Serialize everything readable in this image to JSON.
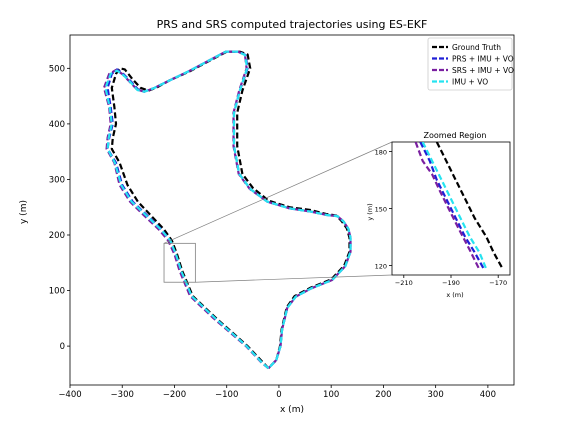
{
  "chart_data": [
    {
      "type": "line",
      "title": "PRS and SRS computed trajectories using ES-EKF",
      "xlabel": "x (m)",
      "ylabel": "y (m)",
      "xlim": [
        -400,
        450
      ],
      "ylim": [
        -70,
        560
      ],
      "xticks": [
        -400,
        -300,
        -200,
        -100,
        0,
        100,
        200,
        300,
        400
      ],
      "yticks": [
        0,
        100,
        200,
        300,
        400,
        500
      ],
      "grid": false,
      "legend_position": "top-right",
      "series": [
        {
          "name": "Ground Truth",
          "color": "#000000",
          "points": [
            [
              -20,
              -40
            ],
            [
              -30,
              -30
            ],
            [
              -60,
              0
            ],
            [
              -120,
              50
            ],
            [
              -165,
              90
            ],
            [
              -185,
              135
            ],
            [
              -195,
              165
            ],
            [
              -205,
              190
            ],
            [
              -220,
              210
            ],
            [
              -245,
              235
            ],
            [
              -270,
              260
            ],
            [
              -290,
              290
            ],
            [
              -305,
              330
            ],
            [
              -320,
              355
            ],
            [
              -318,
              375
            ],
            [
              -312,
              400
            ],
            [
              -315,
              430
            ],
            [
              -320,
              465
            ],
            [
              -312,
              490
            ],
            [
              -305,
              500
            ],
            [
              -295,
              498
            ],
            [
              -280,
              480
            ],
            [
              -265,
              465
            ],
            [
              -250,
              460
            ],
            [
              -235,
              465
            ],
            [
              -210,
              478
            ],
            [
              -170,
              495
            ],
            [
              -130,
              515
            ],
            [
              -100,
              530
            ],
            [
              -75,
              530
            ],
            [
              -60,
              525
            ],
            [
              -55,
              500
            ],
            [
              -70,
              460
            ],
            [
              -80,
              420
            ],
            [
              -80,
              360
            ],
            [
              -70,
              310
            ],
            [
              -50,
              285
            ],
            [
              -20,
              262
            ],
            [
              20,
              250
            ],
            [
              60,
              245
            ],
            [
              90,
              238
            ],
            [
              110,
              235
            ],
            [
              120,
              225
            ],
            [
              130,
              212
            ],
            [
              135,
              195
            ],
            [
              135,
              170
            ],
            [
              125,
              145
            ],
            [
              100,
              120
            ],
            [
              60,
              105
            ],
            [
              30,
              90
            ],
            [
              15,
              70
            ],
            [
              5,
              30
            ],
            [
              2,
              0
            ],
            [
              -5,
              -25
            ],
            [
              -20,
              -40
            ]
          ]
        },
        {
          "name": "PRS + IMU + VO",
          "color": "#1f1fd6",
          "points": [
            [
              -20,
              -40
            ],
            [
              -32,
              -30
            ],
            [
              -62,
              0
            ],
            [
              -122,
              50
            ],
            [
              -168,
              90
            ],
            [
              -188,
              135
            ],
            [
              -198,
              165
            ],
            [
              -208,
              190
            ],
            [
              -225,
              210
            ],
            [
              -252,
              235
            ],
            [
              -280,
              260
            ],
            [
              -300,
              290
            ],
            [
              -312,
              330
            ],
            [
              -328,
              355
            ],
            [
              -325,
              375
            ],
            [
              -318,
              400
            ],
            [
              -322,
              430
            ],
            [
              -328,
              465
            ],
            [
              -320,
              490
            ],
            [
              -310,
              498
            ],
            [
              -298,
              490
            ],
            [
              -282,
              475
            ],
            [
              -270,
              462
            ],
            [
              -258,
              458
            ],
            [
              -240,
              464
            ],
            [
              -212,
              477
            ],
            [
              -172,
              495
            ],
            [
              -132,
              515
            ],
            [
              -102,
              530
            ],
            [
              -77,
              530
            ],
            [
              -64,
              524
            ],
            [
              -60,
              500
            ],
            [
              -75,
              460
            ],
            [
              -86,
              420
            ],
            [
              -86,
              360
            ],
            [
              -76,
              310
            ],
            [
              -55,
              283
            ],
            [
              -22,
              260
            ],
            [
              20,
              248
            ],
            [
              62,
              242
            ],
            [
              92,
              236
            ],
            [
              112,
              234
            ],
            [
              124,
              224
            ],
            [
              133,
              211
            ],
            [
              137,
              195
            ],
            [
              137,
              170
            ],
            [
              127,
              144
            ],
            [
              102,
              119
            ],
            [
              62,
              104
            ],
            [
              32,
              89
            ],
            [
              16,
              69
            ],
            [
              6,
              30
            ],
            [
              3,
              0
            ],
            [
              -5,
              -25
            ],
            [
              -20,
              -40
            ]
          ]
        },
        {
          "name": "SRS + IMU + VO",
          "color": "#7a1fa0",
          "points": [
            [
              -20,
              -40
            ],
            [
              -33,
              -30
            ],
            [
              -63,
              0
            ],
            [
              -125,
              50
            ],
            [
              -170,
              90
            ],
            [
              -190,
              135
            ],
            [
              -200,
              165
            ],
            [
              -212,
              190
            ],
            [
              -230,
              210
            ],
            [
              -258,
              235
            ],
            [
              -285,
              260
            ],
            [
              -305,
              290
            ],
            [
              -315,
              330
            ],
            [
              -330,
              355
            ],
            [
              -328,
              375
            ],
            [
              -322,
              400
            ],
            [
              -325,
              430
            ],
            [
              -335,
              465
            ],
            [
              -325,
              490
            ],
            [
              -312,
              497
            ],
            [
              -300,
              490
            ],
            [
              -285,
              475
            ],
            [
              -272,
              462
            ],
            [
              -258,
              458
            ],
            [
              -240,
              464
            ],
            [
              -212,
              477
            ],
            [
              -172,
              495
            ],
            [
              -132,
              515
            ],
            [
              -102,
              530
            ],
            [
              -78,
              530
            ],
            [
              -65,
              524
            ],
            [
              -62,
              500
            ],
            [
              -76,
              460
            ],
            [
              -87,
              420
            ],
            [
              -87,
              360
            ],
            [
              -77,
              310
            ],
            [
              -56,
              283
            ],
            [
              -22,
              260
            ],
            [
              20,
              248
            ],
            [
              62,
              242
            ],
            [
              92,
              236
            ],
            [
              112,
              234
            ],
            [
              124,
              224
            ],
            [
              133,
              211
            ],
            [
              137,
              195
            ],
            [
              137,
              170
            ],
            [
              127,
              144
            ],
            [
              102,
              119
            ],
            [
              62,
              104
            ],
            [
              32,
              89
            ],
            [
              16,
              69
            ],
            [
              6,
              30
            ],
            [
              3,
              0
            ],
            [
              -5,
              -25
            ],
            [
              -20,
              -40
            ]
          ]
        },
        {
          "name": "IMU + VO",
          "color": "#26e3f0",
          "points": [
            [
              -20,
              -40
            ],
            [
              -32,
              -30
            ],
            [
              -62,
              0
            ],
            [
              -122,
              50
            ],
            [
              -167,
              90
            ],
            [
              -187,
              135
            ],
            [
              -197,
              165
            ],
            [
              -208,
              190
            ],
            [
              -226,
              210
            ],
            [
              -254,
              235
            ],
            [
              -282,
              260
            ],
            [
              -302,
              290
            ],
            [
              -314,
              330
            ],
            [
              -328,
              355
            ],
            [
              -326,
              375
            ],
            [
              -320,
              400
            ],
            [
              -324,
              430
            ],
            [
              -332,
              465
            ],
            [
              -322,
              490
            ],
            [
              -310,
              496
            ],
            [
              -298,
              488
            ],
            [
              -283,
              474
            ],
            [
              -271,
              461
            ],
            [
              -258,
              458
            ],
            [
              -240,
              464
            ],
            [
              -212,
              477
            ],
            [
              -172,
              495
            ],
            [
              -132,
              515
            ],
            [
              -102,
              530
            ],
            [
              -78,
              530
            ],
            [
              -65,
              524
            ],
            [
              -61,
              500
            ],
            [
              -75,
              460
            ],
            [
              -86,
              420
            ],
            [
              -86,
              360
            ],
            [
              -76,
              310
            ],
            [
              -55,
              283
            ],
            [
              -22,
              260
            ],
            [
              20,
              248
            ],
            [
              62,
              242
            ],
            [
              92,
              236
            ],
            [
              112,
              234
            ],
            [
              124,
              224
            ],
            [
              133,
              211
            ],
            [
              137,
              195
            ],
            [
              137,
              170
            ],
            [
              127,
              144
            ],
            [
              102,
              119
            ],
            [
              62,
              104
            ],
            [
              32,
              89
            ],
            [
              16,
              69
            ],
            [
              6,
              30
            ],
            [
              3,
              0
            ],
            [
              -5,
              -25
            ],
            [
              -20,
              -40
            ]
          ]
        }
      ]
    },
    {
      "type": "line",
      "title": "Zoomed Region",
      "xlabel": "x (m)",
      "ylabel": "y (m)",
      "xlim": [
        -215,
        -165
      ],
      "ylim": [
        115,
        185
      ],
      "xticks": [
        -210,
        -190,
        -170
      ],
      "yticks": [
        120,
        150,
        180
      ],
      "zoom_box": {
        "x": [
          -220,
          -160
        ],
        "y": [
          115,
          185
        ]
      },
      "series": [
        {
          "name": "Ground Truth",
          "color": "#000000",
          "points": [
            [
              -196,
              185
            ],
            [
              -192,
              175
            ],
            [
              -188,
              165
            ],
            [
              -184,
              155
            ],
            [
              -180,
              145
            ],
            [
              -175,
              135
            ],
            [
              -172,
              127
            ],
            [
              -168,
              118
            ]
          ]
        },
        {
          "name": "PRS + IMU + VO",
          "color": "#1f1fd6",
          "points": [
            [
              -203,
              185
            ],
            [
              -199,
              175
            ],
            [
              -196,
              165
            ],
            [
              -192,
              155
            ],
            [
              -188,
              145
            ],
            [
              -184,
              135
            ],
            [
              -180,
              127
            ],
            [
              -176,
              118
            ]
          ]
        },
        {
          "name": "SRS + IMU + VO",
          "color": "#7a1fa0",
          "points": [
            [
              -205,
              185
            ],
            [
              -202,
              175
            ],
            [
              -198,
              168
            ],
            [
              -195,
              160
            ],
            [
              -191,
              150
            ],
            [
              -187,
              140
            ],
            [
              -182,
              128
            ],
            [
              -178,
              118
            ]
          ]
        },
        {
          "name": "IMU + VO",
          "color": "#26e3f0",
          "points": [
            [
              -202,
              185
            ],
            [
              -198,
              175
            ],
            [
              -194,
              165
            ],
            [
              -190,
              155
            ],
            [
              -186,
              145
            ],
            [
              -182,
              135
            ],
            [
              -178,
              127
            ],
            [
              -175,
              118
            ]
          ]
        }
      ]
    }
  ]
}
